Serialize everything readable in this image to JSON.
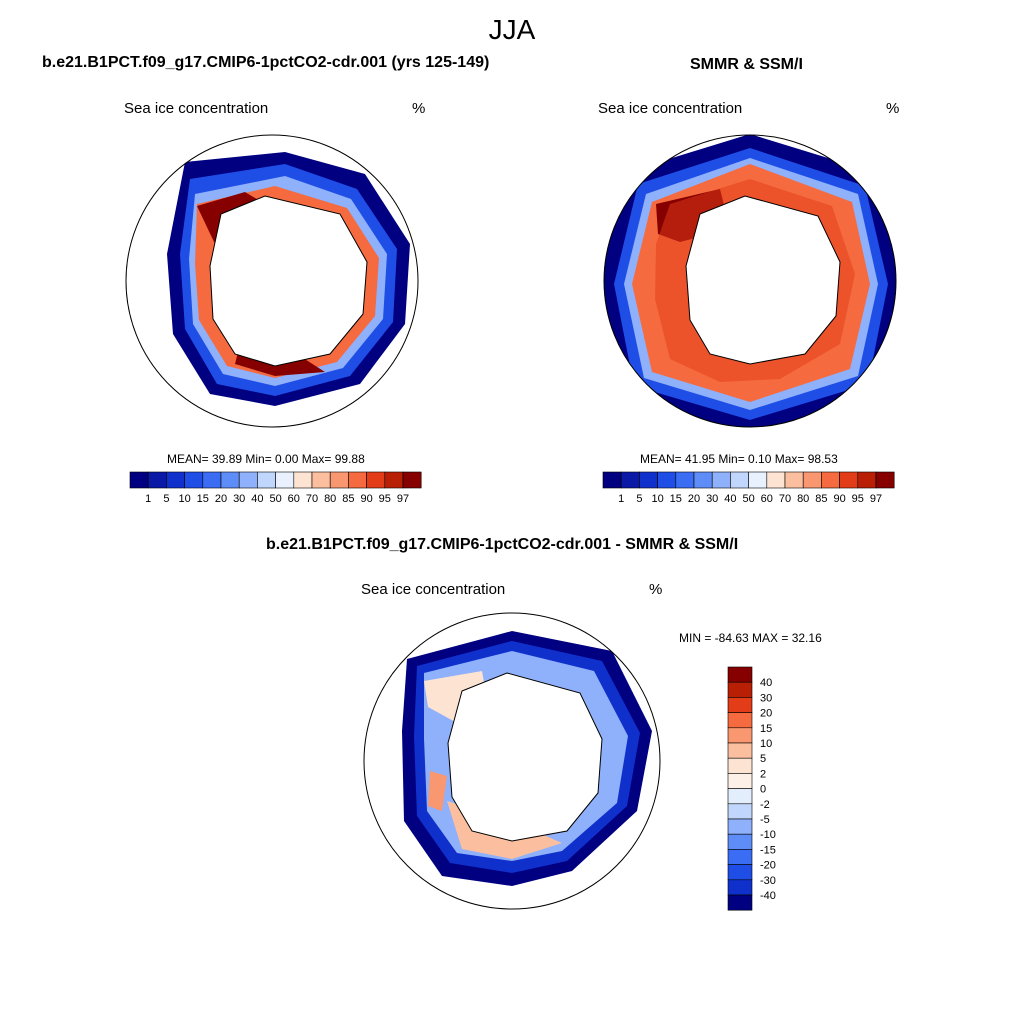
{
  "figure": {
    "season": "JJA",
    "panel1": {
      "title": "b.e21.B1PCT.f09_g17.CMIP6-1pctCO2-cdr.001 (yrs 125-149)",
      "subtitle_left": "Sea ice concentration",
      "subtitle_right": "%",
      "stats": "MEAN=  39.89  Min=   0.00  Max=  99.88"
    },
    "panel2": {
      "title": "SMMR & SSM/I",
      "subtitle_left": "Sea ice concentration",
      "subtitle_right": "%",
      "stats": "MEAN=  41.95  Min=   0.10  Max=  98.53"
    },
    "panel3": {
      "title": "b.e21.B1PCT.f09_g17.CMIP6-1pctCO2-cdr.001 - SMMR & SSM/I",
      "subtitle_left": "Sea ice concentration",
      "subtitle_right": "%",
      "stats": "MIN = -84.63 MAX =  32.16"
    }
  },
  "colorbar_main": {
    "labels": [
      "1",
      "5",
      "10",
      "15",
      "20",
      "30",
      "40",
      "50",
      "60",
      "70",
      "80",
      "85",
      "90",
      "95",
      "97"
    ],
    "colors": [
      "#000080",
      "#0a1aa6",
      "#1030cc",
      "#1f4ee6",
      "#3a6cf4",
      "#5f8df8",
      "#8fb0fa",
      "#c0d6fc",
      "#e8f1fd",
      "#fde3d2",
      "#fbbfa0",
      "#f99870",
      "#f56b3f",
      "#e33c18",
      "#b81f05",
      "#860000"
    ]
  },
  "colorbar_diff": {
    "labels": [
      "40",
      "30",
      "20",
      "15",
      "10",
      "5",
      "2",
      "0",
      "-2",
      "-5",
      "-10",
      "-15",
      "-20",
      "-30",
      "-40"
    ],
    "colors": [
      "#860000",
      "#b81f05",
      "#e33c18",
      "#f56b3f",
      "#f99870",
      "#fbbfa0",
      "#fde3d2",
      "#fdf0e6",
      "#e3eefc",
      "#c0d6fc",
      "#8fb0fa",
      "#5f8df8",
      "#3a6cf4",
      "#1f4ee6",
      "#1030cc",
      "#000080"
    ]
  }
}
